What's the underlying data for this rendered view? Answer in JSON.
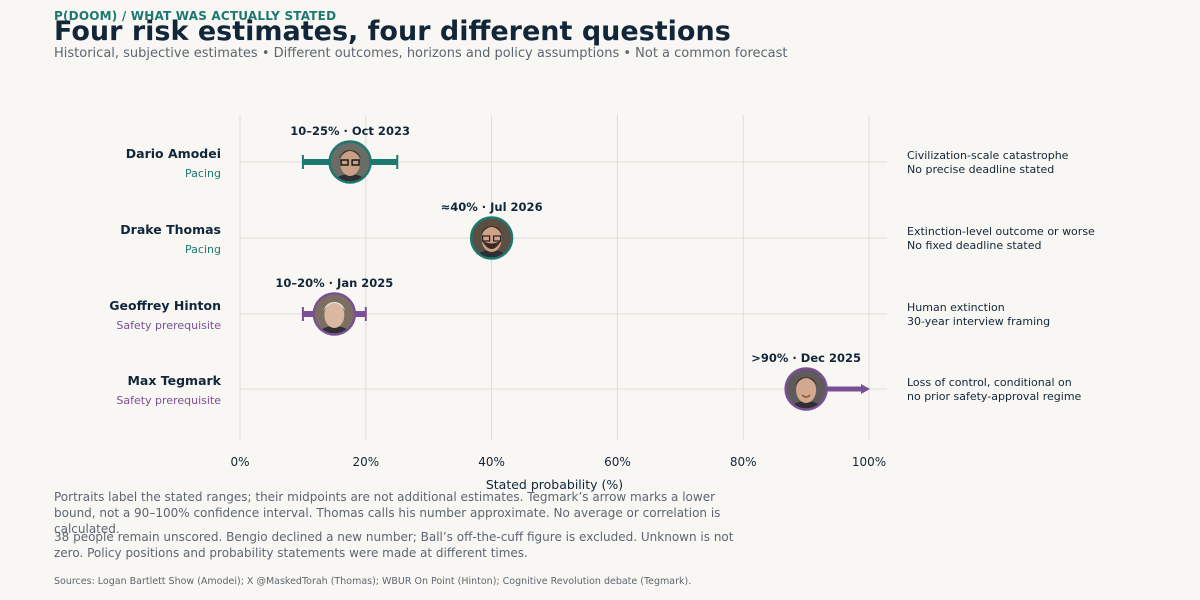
{
  "header": {
    "kicker": "P(DOOM) / WHAT WAS ACTUALLY STATED",
    "title": "Four risk estimates, four different questions",
    "subtitle": "Historical, subjective estimates • Different outcomes, horizons and policy assumptions • Not a common forecast"
  },
  "colors": {
    "pacing": "#1d7870",
    "safety": "#7b4f97",
    "text": "#12263a",
    "muted": "#5c6672",
    "grid": "#dedcd6",
    "background": "#f8f7f3"
  },
  "chart_data": {
    "type": "range-dot",
    "xlabel": "Stated probability (%)",
    "xlim": [
      0,
      100
    ],
    "xticks": [
      0,
      20,
      40,
      60,
      80,
      100
    ],
    "xtick_labels": [
      "0%",
      "20%",
      "40%",
      "60%",
      "80%",
      "100%"
    ],
    "grid": true,
    "rows": [
      {
        "name": "Dario Amodei",
        "group": "Pacing",
        "label": "10–25% · Oct 2023",
        "low": 10,
        "high": 25,
        "point": 17.5,
        "marker": "range",
        "portrait": "glasses-portrait",
        "outcome": "Civilization-scale catastrophe",
        "horizon": "No precise deadline stated"
      },
      {
        "name": "Drake Thomas",
        "group": "Pacing",
        "label": "≈40% · Jul 2026",
        "low": 40,
        "high": 40,
        "point": 40,
        "marker": "point",
        "portrait": "bearded-portrait",
        "outcome": "Extinction-level outcome or worse",
        "horizon": "No fixed deadline stated"
      },
      {
        "name": "Geoffrey Hinton",
        "group": "Safety prerequisite",
        "label": "10–20% · Jan 2025",
        "low": 10,
        "high": 20,
        "point": 15,
        "marker": "range",
        "portrait": "elder-portrait",
        "outcome": "Human extinction",
        "horizon": "30-year interview framing"
      },
      {
        "name": "Max Tegmark",
        "group": "Safety prerequisite",
        "label": ">90% · Dec 2025",
        "low": 90,
        "high": 100,
        "point": 90,
        "marker": "lower-bound",
        "portrait": "smiling-portrait",
        "outcome": "Loss of control, conditional on",
        "horizon": "no prior safety-approval regime"
      }
    ]
  },
  "notes": {
    "note1": "Portraits label the stated ranges; their midpoints are not additional estimates. Tegmark’s arrow marks a lower bound, not a 90–100% confidence interval. Thomas calls his number approximate. No average or correlation is calculated.",
    "note2": "38 people remain unscored. Bengio declined a new number; Ball’s off-the-cuff figure is excluded. Unknown is not zero. Policy positions and probability statements were made at different times.",
    "sources": "Sources: Logan Bartlett Show (Amodei); X @MaskedTorah (Thomas); WBUR On Point (Hinton); Cognitive Revolution debate (Tegmark)."
  }
}
